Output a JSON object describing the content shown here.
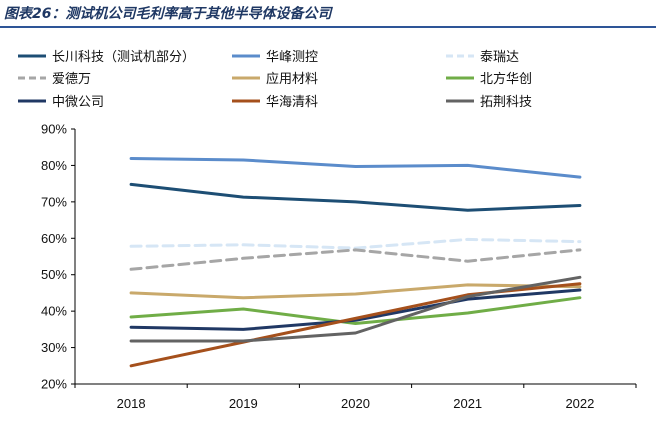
{
  "figure_title": "图表26：测试机公司毛利率高于其他半导体设备公司",
  "chart_data": {
    "type": "line",
    "title": "",
    "xlabel": "",
    "ylabel": "",
    "categories": [
      "2018",
      "2019",
      "2020",
      "2021",
      "2022"
    ],
    "ylim": [
      0.2,
      0.9
    ],
    "yticks": [
      "90%",
      "80%",
      "70%",
      "60%",
      "50%",
      "40%",
      "30%",
      "20%"
    ],
    "y_format": "percent",
    "grid": false,
    "legend_position": "top",
    "series": [
      {
        "name": "长川科技（测试机部分）",
        "color": "#1d4e74",
        "dash": "solid",
        "values": [
          0.748,
          0.713,
          0.7,
          0.677,
          0.69
        ]
      },
      {
        "name": "华峰测控",
        "color": "#5b8ccb",
        "dash": "solid",
        "values": [
          0.819,
          0.815,
          0.797,
          0.8,
          0.768
        ]
      },
      {
        "name": "泰瑞达",
        "color": "#d6e6f5",
        "dash": "dashed",
        "values": [
          0.578,
          0.582,
          0.573,
          0.597,
          0.591
        ]
      },
      {
        "name": "爱德万",
        "color": "#a6a6a6",
        "dash": "dashed",
        "values": [
          0.515,
          0.545,
          0.568,
          0.537,
          0.568
        ]
      },
      {
        "name": "应用材料",
        "color": "#c9a96b",
        "dash": "solid",
        "values": [
          0.45,
          0.437,
          0.447,
          0.472,
          0.467
        ]
      },
      {
        "name": "北方华创",
        "color": "#70ad47",
        "dash": "solid",
        "values": [
          0.384,
          0.406,
          0.366,
          0.395,
          0.437
        ]
      },
      {
        "name": "中微公司",
        "color": "#203864",
        "dash": "solid",
        "values": [
          0.356,
          0.35,
          0.375,
          0.433,
          0.458
        ]
      },
      {
        "name": "华海清科",
        "color": "#a5501c",
        "dash": "solid",
        "values": [
          0.25,
          0.315,
          0.38,
          0.445,
          0.475
        ]
      },
      {
        "name": "拓荆科技",
        "color": "#636363",
        "dash": "solid",
        "values": [
          0.318,
          0.318,
          0.34,
          0.44,
          0.493
        ]
      }
    ]
  }
}
